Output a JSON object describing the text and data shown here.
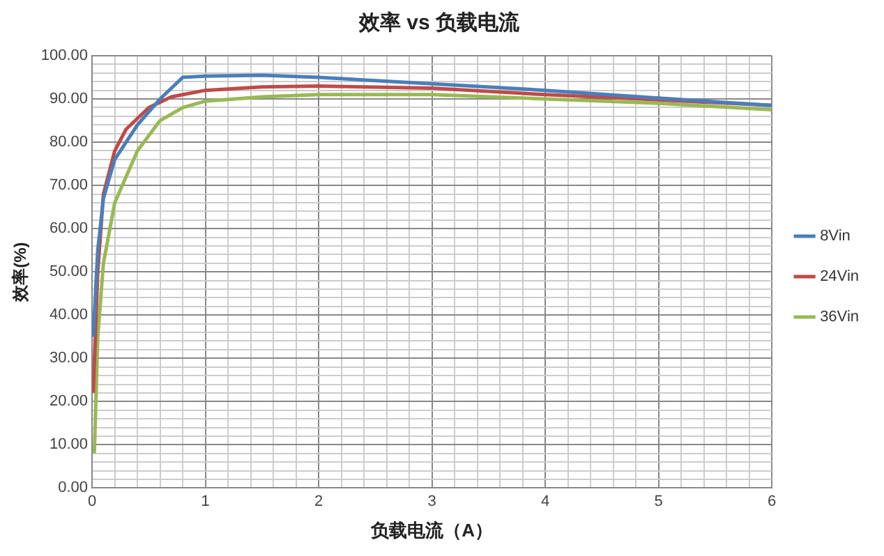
{
  "chart_data": {
    "type": "line",
    "title": "效率 vs 负载电流",
    "xlabel": "负载电流（A）",
    "ylabel": "效率(%)",
    "xlim": [
      0,
      6
    ],
    "ylim": [
      0,
      100
    ],
    "xticks": [
      0,
      {
        "value": 0.2,
        "label": null
      },
      {
        "value": 0.4,
        "label": null
      },
      {
        "value": 0.6,
        "label": null
      },
      {
        "value": 0.8,
        "label": null
      },
      1,
      {
        "value": 1.2,
        "label": null
      },
      {
        "value": 1.4,
        "label": null
      },
      {
        "value": 1.6,
        "label": null
      },
      {
        "value": 1.8,
        "label": null
      },
      2,
      {
        "value": 2.2,
        "label": null
      },
      {
        "value": 2.4,
        "label": null
      },
      {
        "value": 2.6,
        "label": null
      },
      {
        "value": 2.8,
        "label": null
      },
      3,
      {
        "value": 3.2,
        "label": null
      },
      {
        "value": 3.4,
        "label": null
      },
      {
        "value": 3.6,
        "label": null
      },
      {
        "value": 3.8,
        "label": null
      },
      4,
      {
        "value": 4.2,
        "label": null
      },
      {
        "value": 4.4,
        "label": null
      },
      {
        "value": 4.6,
        "label": null
      },
      {
        "value": 4.8,
        "label": null
      },
      5,
      {
        "value": 5.2,
        "label": null
      },
      {
        "value": 5.4,
        "label": null
      },
      {
        "value": 5.6,
        "label": null
      },
      {
        "value": 5.8,
        "label": null
      },
      6
    ],
    "yticks": [
      {
        "value": 0,
        "label": "0.00"
      },
      {
        "value": 2,
        "label": null
      },
      {
        "value": 4,
        "label": null
      },
      {
        "value": 6,
        "label": null
      },
      {
        "value": 8,
        "label": null
      },
      {
        "value": 10,
        "label": "10.00"
      },
      {
        "value": 12,
        "label": null
      },
      {
        "value": 14,
        "label": null
      },
      {
        "value": 16,
        "label": null
      },
      {
        "value": 18,
        "label": null
      },
      {
        "value": 20,
        "label": "20.00"
      },
      {
        "value": 22,
        "label": null
      },
      {
        "value": 24,
        "label": null
      },
      {
        "value": 26,
        "label": null
      },
      {
        "value": 28,
        "label": null
      },
      {
        "value": 30,
        "label": "30.00"
      },
      {
        "value": 32,
        "label": null
      },
      {
        "value": 34,
        "label": null
      },
      {
        "value": 36,
        "label": null
      },
      {
        "value": 38,
        "label": null
      },
      {
        "value": 40,
        "label": "40.00"
      },
      {
        "value": 42,
        "label": null
      },
      {
        "value": 44,
        "label": null
      },
      {
        "value": 46,
        "label": null
      },
      {
        "value": 48,
        "label": null
      },
      {
        "value": 50,
        "label": "50.00"
      },
      {
        "value": 52,
        "label": null
      },
      {
        "value": 54,
        "label": null
      },
      {
        "value": 56,
        "label": null
      },
      {
        "value": 58,
        "label": null
      },
      {
        "value": 60,
        "label": "60.00"
      },
      {
        "value": 62,
        "label": null
      },
      {
        "value": 64,
        "label": null
      },
      {
        "value": 66,
        "label": null
      },
      {
        "value": 68,
        "label": null
      },
      {
        "value": 70,
        "label": "70.00"
      },
      {
        "value": 72,
        "label": null
      },
      {
        "value": 74,
        "label": null
      },
      {
        "value": 76,
        "label": null
      },
      {
        "value": 78,
        "label": null
      },
      {
        "value": 80,
        "label": "80.00"
      },
      {
        "value": 82,
        "label": null
      },
      {
        "value": 84,
        "label": null
      },
      {
        "value": 86,
        "label": null
      },
      {
        "value": 88,
        "label": null
      },
      {
        "value": 90,
        "label": "90.00"
      },
      {
        "value": 92,
        "label": null
      },
      {
        "value": 94,
        "label": null
      },
      {
        "value": 96,
        "label": null
      },
      {
        "value": 98,
        "label": null
      },
      {
        "value": 100,
        "label": "100.00"
      }
    ],
    "grid": true,
    "legend": "right",
    "marker": "none",
    "line_style": "solid",
    "series": [
      {
        "name": "8Vin",
        "color": "#4a7ebb",
        "x": [
          0.01,
          0.05,
          0.1,
          0.2,
          0.4,
          0.6,
          0.8,
          1,
          1.5,
          2,
          3,
          4,
          5,
          6
        ],
        "values": [
          35,
          55,
          67,
          76,
          84,
          90,
          95,
          95.3,
          95.5,
          95,
          93.5,
          92,
          90.2,
          88.5
        ]
      },
      {
        "name": "24Vin",
        "color": "#be4b48",
        "x": [
          0.01,
          0.05,
          0.1,
          0.2,
          0.3,
          0.5,
          0.7,
          1,
          1.5,
          2,
          3,
          4,
          5,
          6
        ],
        "values": [
          22,
          50,
          68,
          78,
          83,
          88,
          90.5,
          92,
          92.8,
          93,
          92.5,
          91,
          89.8,
          88.5
        ]
      },
      {
        "name": "36Vin",
        "color": "#98b954",
        "x": [
          0.02,
          0.05,
          0.1,
          0.2,
          0.4,
          0.6,
          0.8,
          1,
          1.5,
          2,
          3,
          4,
          5,
          6
        ],
        "values": [
          8,
          35,
          52,
          66,
          78,
          85,
          88,
          89.5,
          90.5,
          91,
          91,
          90,
          89,
          87.5
        ]
      }
    ]
  }
}
